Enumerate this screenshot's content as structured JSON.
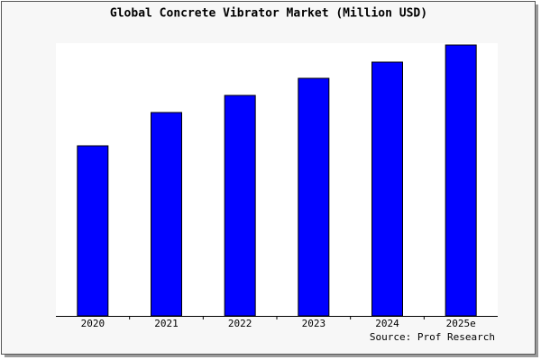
{
  "chart_data": {
    "type": "bar",
    "title": "Global Concrete Vibrator Market (Million USD)",
    "categories": [
      "2020",
      "2021",
      "2022",
      "2023",
      "2024",
      "2025e"
    ],
    "values": [
      189,
      226,
      245,
      264,
      282,
      301
    ],
    "color": "#0000ff",
    "ylim": [
      0,
      301
    ],
    "source": "Source: Prof Research"
  }
}
